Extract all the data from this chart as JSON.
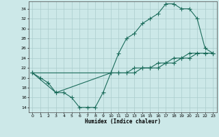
{
  "xlabel": "Humidex (Indice chaleur)",
  "bg_color": "#cce8e8",
  "grid_color": "#aacccc",
  "line_color": "#1a6b5a",
  "xlim": [
    -0.5,
    23.5
  ],
  "ylim": [
    13.0,
    35.5
  ],
  "xticks": [
    0,
    1,
    2,
    3,
    4,
    5,
    6,
    7,
    8,
    9,
    10,
    11,
    12,
    13,
    14,
    15,
    16,
    17,
    18,
    19,
    20,
    21,
    22,
    23
  ],
  "yticks": [
    14,
    16,
    18,
    20,
    22,
    24,
    26,
    28,
    30,
    32,
    34
  ],
  "line1_x": [
    0,
    1,
    2,
    3,
    10,
    11,
    12,
    13,
    14,
    15,
    16,
    17,
    18,
    19,
    20,
    21,
    22,
    23
  ],
  "line1_y": [
    21,
    20,
    19,
    17,
    21,
    25,
    28,
    29,
    31,
    32,
    33,
    35,
    35,
    34,
    34,
    32,
    26,
    25
  ],
  "line2_x": [
    0,
    3,
    4,
    5,
    6,
    7,
    8,
    9,
    10,
    11,
    12,
    13,
    14,
    15,
    16,
    17,
    18,
    19,
    20,
    21,
    22,
    23
  ],
  "line2_y": [
    21,
    17,
    17,
    16,
    14,
    14,
    14,
    17,
    21,
    21,
    21,
    21,
    22,
    22,
    22,
    23,
    23,
    24,
    24,
    25,
    25,
    25
  ],
  "line3_x": [
    0,
    10,
    11,
    12,
    13,
    14,
    15,
    16,
    17,
    18,
    19,
    20,
    21,
    22,
    23
  ],
  "line3_y": [
    21,
    21,
    21,
    21,
    22,
    22,
    22,
    23,
    23,
    24,
    24,
    25,
    25,
    25,
    25
  ]
}
